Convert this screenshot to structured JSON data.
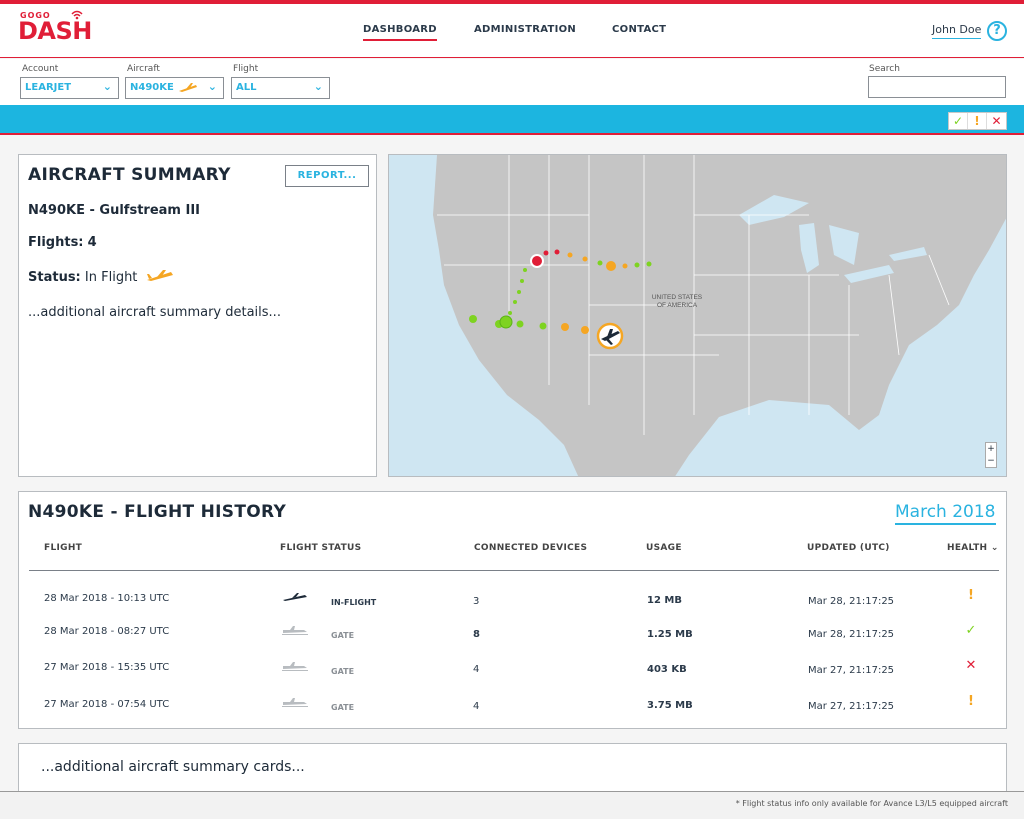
{
  "brand": {
    "top": "GOGO",
    "name": "DASH"
  },
  "nav": {
    "dashboard": "DASHBOARD",
    "administration": "ADMINISTRATION",
    "contact": "CONTACT"
  },
  "user": {
    "name": "John Doe",
    "help": "?"
  },
  "filters": {
    "account_label": "Account",
    "account_value": "LEARJET",
    "aircraft_label": "Aircraft",
    "aircraft_value": "N490KE",
    "flight_label": "Flight",
    "flight_value": "ALL",
    "search_label": "Search",
    "search_value": ""
  },
  "status_buttons": {
    "ok": "✓",
    "warn": "!",
    "error": "✕"
  },
  "summary": {
    "title": "AIRCRAFT SUMMARY",
    "report_label": "REPORT...",
    "aircraft": "N490KE - Gulfstream III",
    "flights_label": "Flights:",
    "flights_value": "4",
    "status_label": "Status:",
    "status_value": "In Flight",
    "details": "...additional aircraft summary details..."
  },
  "map": {
    "country_label_1": "UNITED STATES",
    "country_label_2": "OF AMERICA",
    "zoom_in": "+",
    "zoom_out": "−"
  },
  "history": {
    "title": "N490KE - FLIGHT HISTORY",
    "month": "March 2018",
    "columns": {
      "flight": "FLIGHT",
      "status": "FLIGHT STATUS",
      "devices": "CONNECTED DEVICES",
      "usage": "USAGE",
      "updated": "UPDATED (UTC)",
      "health": "HEALTH"
    },
    "rows": [
      {
        "flight": "28 Mar 2018 - 10:13 UTC",
        "status": "IN-FLIGHT",
        "devices": "3",
        "usage": "12 MB",
        "updated": "Mar 28, 21:17:25",
        "health": "!"
      },
      {
        "flight": "28 Mar 2018 - 08:27 UTC",
        "status": "GATE",
        "devices": "8",
        "usage": "1.25 MB",
        "updated": "Mar 28, 21:17:25",
        "health": "✓"
      },
      {
        "flight": "27 Mar 2018 - 15:35 UTC",
        "status": "GATE",
        "devices": "4",
        "usage": "403 KB",
        "updated": "Mar 27, 21:17:25",
        "health": "✕"
      },
      {
        "flight": "27 Mar 2018 - 07:54 UTC",
        "status": "GATE",
        "devices": "4",
        "usage": "3.75 MB",
        "updated": "Mar 27, 21:17:25",
        "health": "!"
      }
    ]
  },
  "more_cards": "...additional aircraft summary cards...",
  "footer_note": "* Flight status info only available for Avance L3/L5 equipped aircraft",
  "colors": {
    "brand_red": "#e01e37",
    "accent_blue": "#1cb5e0",
    "warn_orange": "#f5a623",
    "ok_green": "#7ed321",
    "error_red": "#e01e37"
  }
}
